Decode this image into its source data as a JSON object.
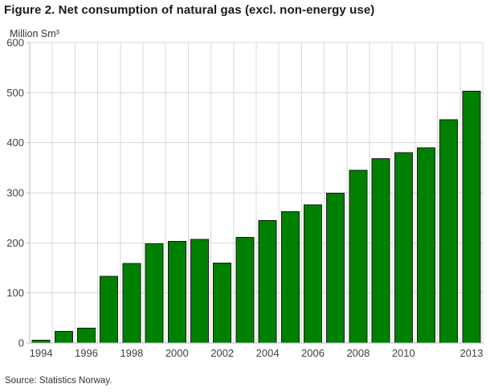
{
  "chart_data": {
    "type": "bar",
    "title": "Figure 2. Net consumption of natural gas (excl. non-energy use)",
    "ylabel": "Million Sm³",
    "xlabel": "",
    "ylim": [
      0,
      600
    ],
    "yticks": [
      0,
      100,
      200,
      300,
      400,
      500,
      600
    ],
    "categories": [
      1994,
      1995,
      1996,
      1997,
      1998,
      1999,
      2000,
      2001,
      2002,
      2003,
      2004,
      2005,
      2006,
      2007,
      2008,
      2009,
      2010,
      2011,
      2012,
      2013
    ],
    "values": [
      6,
      23,
      30,
      133,
      159,
      198,
      203,
      207,
      160,
      211,
      245,
      262,
      276,
      299,
      345,
      368,
      380,
      390,
      446,
      503
    ],
    "xtick_labels": [
      "1994",
      "1996",
      "1998",
      "2000",
      "2002",
      "2004",
      "2006",
      "2008",
      "2010",
      "2013"
    ],
    "grid": true,
    "legend": "none",
    "colors": {
      "bar_fill": "#008000",
      "bar_border": "#1a1a1a",
      "gridline": "#d9d9d9",
      "axis_line": "#b9b9b9",
      "tick_text": "#404040",
      "title_text": "#1a1a1a"
    }
  },
  "footer": {
    "source": "Source: Statistics Norway."
  }
}
